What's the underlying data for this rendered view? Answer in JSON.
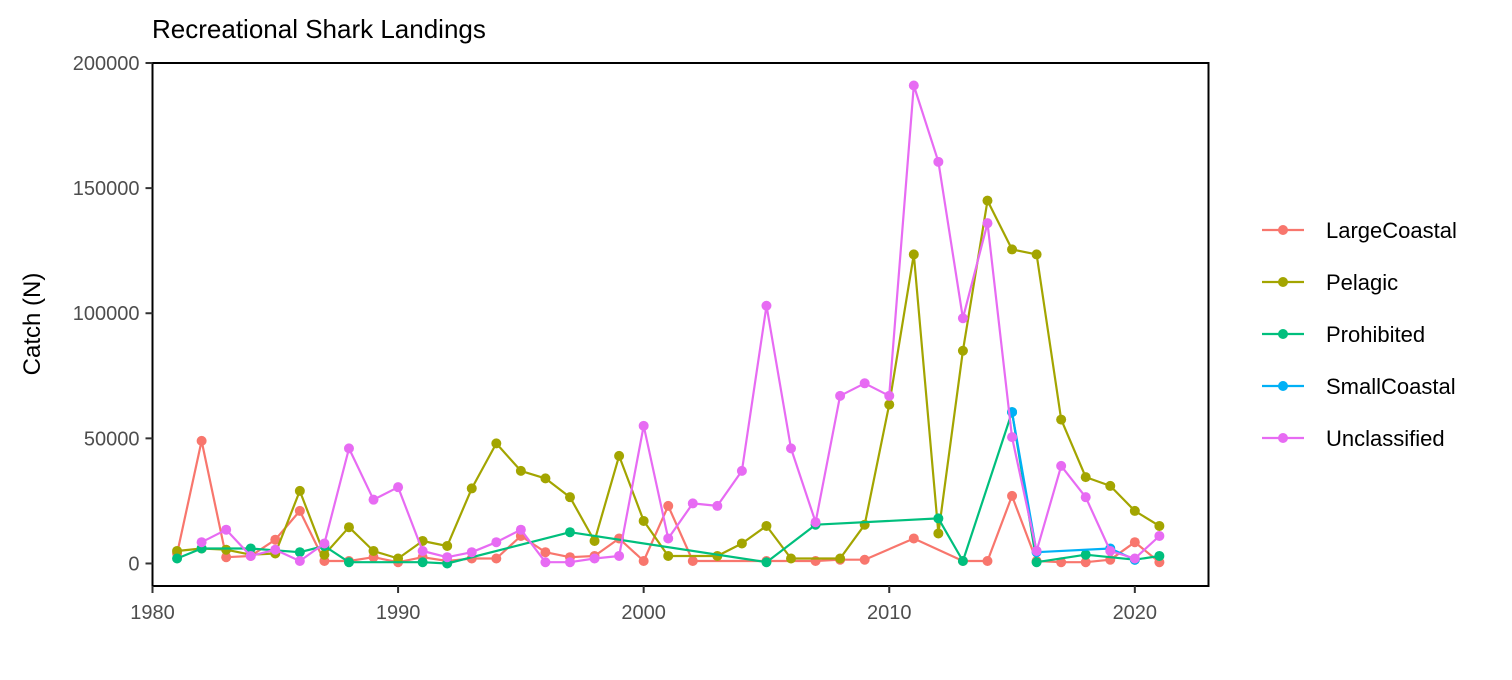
{
  "chart_data": {
    "type": "line",
    "title": "Recreational Shark Landings",
    "xlabel": "",
    "ylabel": "Catch (N)",
    "xlim": [
      1980,
      2023
    ],
    "ylim": [
      -9000,
      200000
    ],
    "xticks": [
      1980,
      1990,
      2000,
      2010,
      2020
    ],
    "yticks": [
      0,
      50000,
      100000,
      150000,
      200000
    ],
    "grid": false,
    "legend_position": "right",
    "series": [
      {
        "name": "LargeCoastal",
        "color": "#F8766D",
        "x": [
          1981,
          1982,
          1983,
          1984,
          1985,
          1986,
          1987,
          1988,
          1989,
          1990,
          1991,
          1992,
          1993,
          1994,
          1995,
          1996,
          1997,
          1998,
          1999,
          2000,
          2001,
          2002,
          2005,
          2007,
          2008,
          2009,
          2011,
          2013,
          2014,
          2015,
          2016,
          2017,
          2018,
          2019,
          2020,
          2021
        ],
        "y": [
          4000,
          49000,
          2500,
          3000,
          9500,
          21000,
          1000,
          1000,
          2500,
          500,
          2500,
          1000,
          2000,
          2000,
          11000,
          4500,
          2500,
          3000,
          10000,
          1000,
          23000,
          1000,
          1000,
          1000,
          1500,
          1500,
          10000,
          1000,
          1000,
          27000,
          1000,
          500,
          500,
          1500,
          8500,
          500
        ]
      },
      {
        "name": "Pelagic",
        "color": "#A3A500",
        "x": [
          1981,
          1982,
          1983,
          1984,
          1985,
          1986,
          1987,
          1988,
          1989,
          1990,
          1991,
          1992,
          1993,
          1994,
          1995,
          1996,
          1997,
          1998,
          1999,
          2000,
          2001,
          2003,
          2004,
          2005,
          2006,
          2008,
          2009,
          2010,
          2011,
          2012,
          2013,
          2014,
          2015,
          2016,
          2017,
          2018,
          2019,
          2020,
          2021
        ],
        "y": [
          5000,
          6000,
          5500,
          3500,
          4000,
          29000,
          3500,
          14500,
          5000,
          2000,
          9000,
          7000,
          30000,
          48000,
          37000,
          34000,
          26500,
          9000,
          43000,
          17000,
          3000,
          3000,
          8000,
          15000,
          2000,
          2000,
          15500,
          63500,
          123500,
          12000,
          85000,
          145000,
          125500,
          123500,
          57500,
          34500,
          31000,
          21000,
          15000
        ]
      },
      {
        "name": "Prohibited",
        "color": "#00BF7D",
        "x": [
          1981,
          1982,
          1984,
          1986,
          1987,
          1988,
          1991,
          1992,
          1997,
          2005,
          2007,
          2012,
          2013,
          2015,
          2016,
          2018,
          2020,
          2021
        ],
        "y": [
          2000,
          6000,
          6000,
          4500,
          7000,
          500,
          500,
          0,
          12500,
          500,
          15500,
          18000,
          1000,
          60500,
          500,
          3500,
          1500,
          3000
        ]
      },
      {
        "name": "SmallCoastal",
        "color": "#00B0F6",
        "x": [
          2015,
          2016,
          2019,
          2020
        ],
        "y": [
          60500,
          4500,
          6000,
          1500
        ]
      },
      {
        "name": "Unclassified",
        "color": "#E76BF3",
        "x": [
          1982,
          1983,
          1984,
          1985,
          1986,
          1987,
          1988,
          1989,
          1990,
          1991,
          1992,
          1993,
          1994,
          1995,
          1996,
          1997,
          1998,
          1999,
          2000,
          2001,
          2002,
          2003,
          2004,
          2005,
          2006,
          2007,
          2008,
          2009,
          2010,
          2011,
          2012,
          2013,
          2014,
          2015,
          2016,
          2017,
          2018,
          2019,
          2020,
          2021
        ],
        "y": [
          8500,
          13500,
          3000,
          5500,
          1000,
          8000,
          46000,
          25500,
          30500,
          5000,
          2500,
          4500,
          8500,
          13500,
          500,
          500,
          2000,
          3000,
          55000,
          10000,
          24000,
          23000,
          37000,
          103000,
          46000,
          16500,
          67000,
          72000,
          67000,
          191000,
          160500,
          98000,
          136000,
          50500,
          5000,
          39000,
          26500,
          5000,
          2000,
          11000
        ]
      }
    ]
  }
}
